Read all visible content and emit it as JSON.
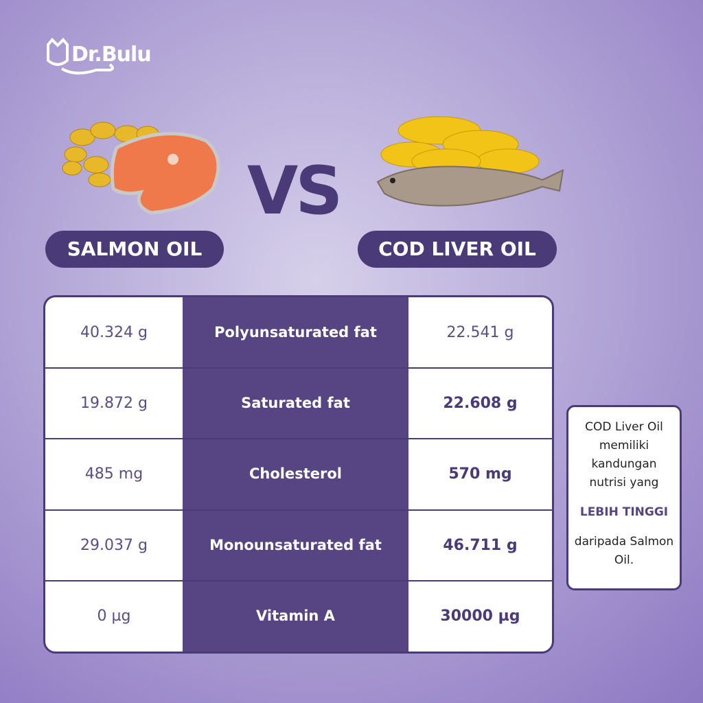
{
  "header": {
    "brand": "Dr.Bulu",
    "versus": "VS",
    "left_label": "SALMON OIL",
    "right_label": "COD LIVER OIL"
  },
  "table": {
    "rows": [
      [
        "40.324 g",
        "Polyunsaturated fat",
        "22.541 g"
      ],
      [
        "19.872 g",
        "Saturated fat",
        "22.608 g"
      ],
      [
        "485 mg",
        "Cholesterol",
        "570 mg"
      ],
      [
        "29.037 g",
        "Monounsaturated fat",
        "46.711 g"
      ],
      [
        "0 µg",
        "Vitamin A",
        "30000 µg"
      ]
    ]
  },
  "note": {
    "intro": "COD Liver Oil memiliki kandungan nutrisi yang",
    "highlight": "LEBIH TINGGI",
    "outro": "daripada Salmon Oil."
  }
}
